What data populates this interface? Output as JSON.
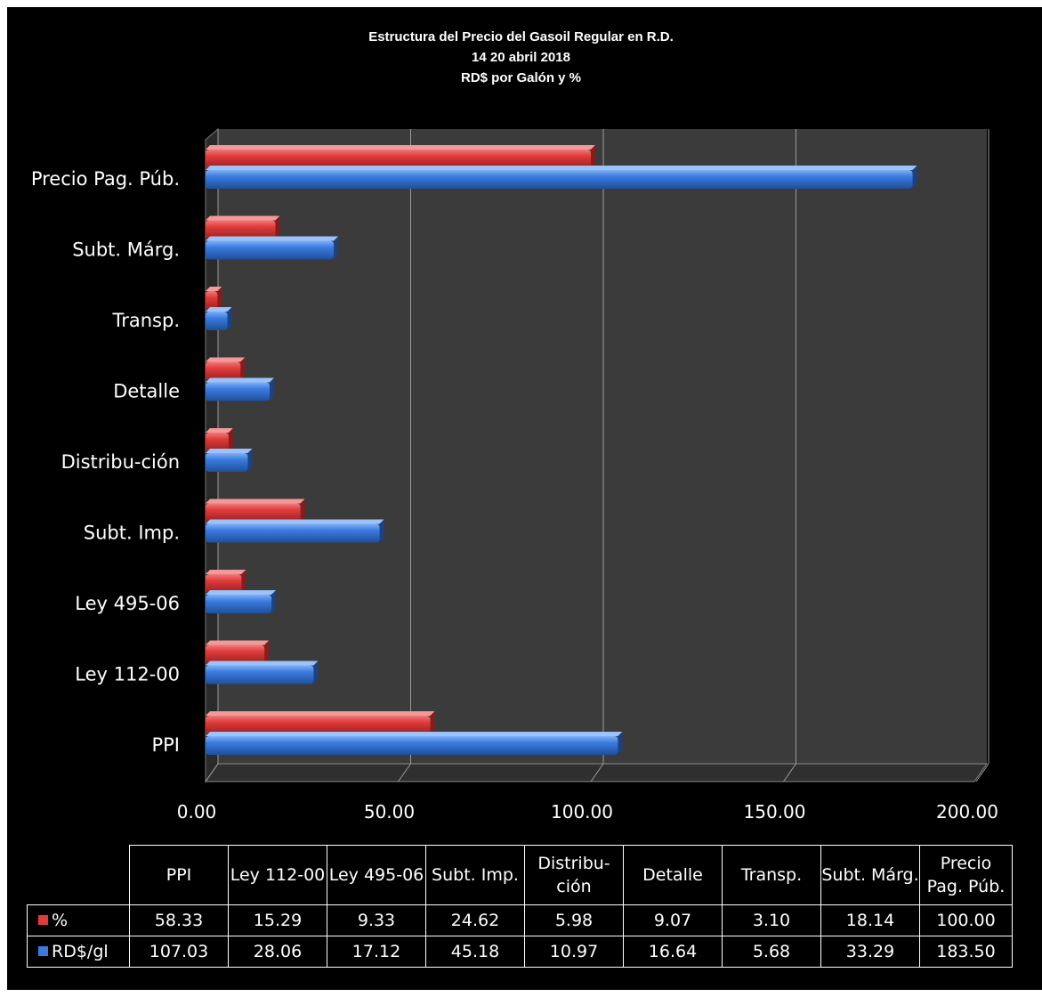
{
  "chart_data": {
    "type": "bar",
    "orientation": "horizontal",
    "title_lines": [
      "Estructura del Precio del Gasoil Regular en R.D.",
      "14  20 abril 2018",
      "RD$ por Galón y %"
    ],
    "categories": [
      "PPI",
      "Ley 112-00",
      "Ley 495-06",
      "Subt. Imp.",
      "Distribu-ción",
      "Detalle",
      "Transp.",
      "Subt. Márg.",
      "Precio Pag. Púb."
    ],
    "table_headers": [
      "PPI",
      "Ley 112-00",
      "Ley 495-06",
      "Subt. Imp.",
      "Distribu-ción",
      "Detalle",
      "Transp.",
      "Subt. Márg.",
      "Precio Pag. Púb."
    ],
    "series": [
      {
        "name": "%",
        "color": "#e03b3b",
        "values": [
          58.33,
          15.29,
          9.33,
          24.62,
          5.98,
          9.07,
          3.1,
          18.14,
          100.0
        ],
        "display": [
          "58.33",
          "15.29",
          "9.33",
          "24.62",
          "5.98",
          "9.07",
          "3.10",
          "18.14",
          "100.00"
        ]
      },
      {
        "name": "RD$/gl",
        "color": "#3b7be0",
        "values": [
          107.03,
          28.06,
          17.12,
          45.18,
          10.97,
          16.64,
          5.68,
          33.29,
          183.5
        ],
        "display": [
          "107.03",
          "28.06",
          "17.12",
          "45.18",
          "10.97",
          "16.64",
          "5.68",
          "33.29",
          "183.50"
        ]
      }
    ],
    "xlim": [
      0,
      200
    ],
    "xticks": [
      "0.00",
      "50.00",
      "100.00",
      "150.00",
      "200.00"
    ],
    "xtick_values": [
      0,
      50,
      100,
      150,
      200
    ],
    "grid": true,
    "legend": "data-table"
  }
}
